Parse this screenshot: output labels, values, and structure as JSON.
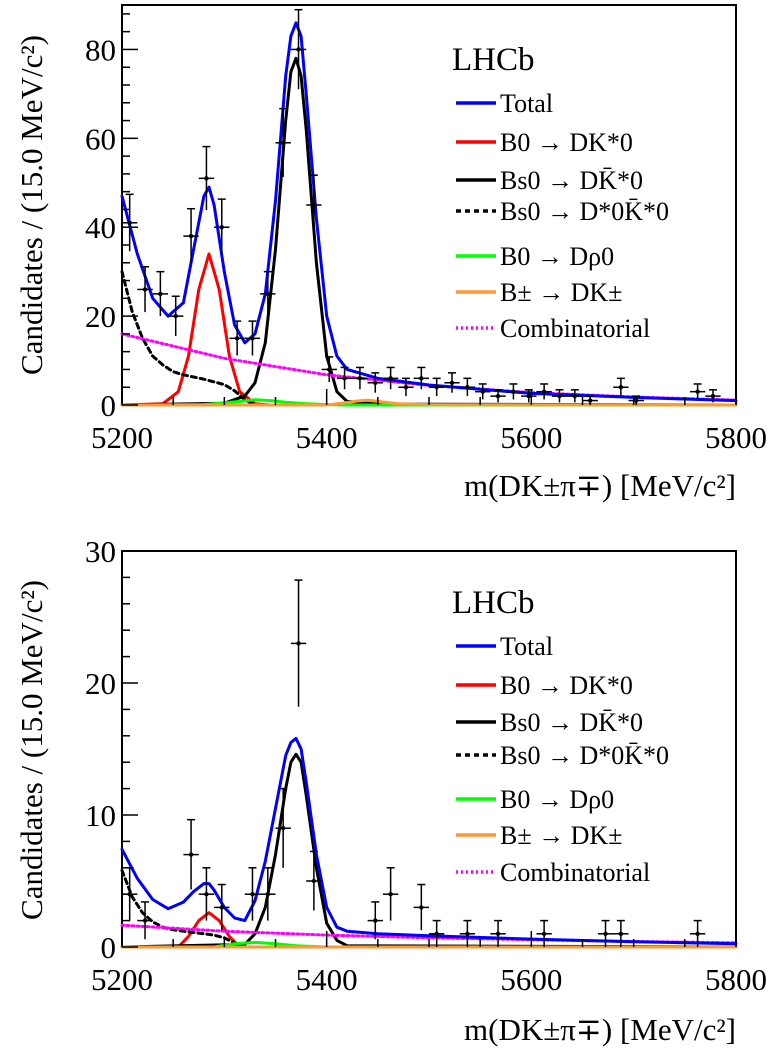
{
  "chart_data": [
    {
      "type": "line",
      "brand": "LHCb",
      "xlabel": "m(DK±π∓) [MeV/c²]",
      "ylabel": "Candidates / (15.0 MeV/c²)",
      "xlim": [
        5200,
        5800
      ],
      "ylim": [
        0,
        90
      ],
      "xticks": [
        5200,
        5400,
        5600,
        5800
      ],
      "yticks": [
        0,
        20,
        40,
        60,
        80
      ],
      "legend_position": "top-right",
      "series": [
        {
          "name": "Total",
          "color": "#0000ff",
          "style": "solid",
          "x": [
            5200,
            5215,
            5230,
            5245,
            5260,
            5270,
            5280,
            5285,
            5290,
            5300,
            5310,
            5320,
            5330,
            5340,
            5350,
            5360,
            5365,
            5370,
            5375,
            5380,
            5390,
            5400,
            5410,
            5420,
            5450,
            5500,
            5600,
            5700,
            5800
          ],
          "y": [
            47,
            34,
            24,
            20,
            23,
            35,
            47,
            49,
            45,
            30,
            18,
            14,
            16,
            25,
            46,
            74,
            83,
            86,
            83,
            70,
            42,
            20,
            11,
            8,
            6,
            4.5,
            2.6,
            1.7,
            1
          ]
        },
        {
          "name": "B0 → DK*0",
          "color": "#ff0000",
          "style": "solid",
          "x": [
            5200,
            5240,
            5255,
            5265,
            5275,
            5285,
            5295,
            5305,
            5315,
            5330,
            5345
          ],
          "y": [
            0,
            0.3,
            3,
            11,
            26,
            34,
            26,
            11,
            3,
            0.3,
            0
          ]
        },
        {
          "name": "Bs0 → DK̄*0",
          "color": "#000000",
          "style": "solid",
          "x": [
            5200,
            5300,
            5320,
            5330,
            5340,
            5350,
            5360,
            5365,
            5370,
            5375,
            5380,
            5390,
            5400,
            5410,
            5420,
            5450,
            5800
          ],
          "y": [
            0,
            0.4,
            2,
            5,
            14,
            35,
            64,
            75,
            78,
            74,
            62,
            32,
            11,
            3,
            0.8,
            0.2,
            0
          ]
        },
        {
          "name": "Bs0 → D*0K̄*0",
          "color": "#000000",
          "style": "dashed",
          "x": [
            5200,
            5210,
            5220,
            5230,
            5240,
            5250,
            5260,
            5270,
            5280,
            5290,
            5300,
            5310,
            5320,
            5330
          ],
          "y": [
            30,
            21,
            15,
            11,
            9,
            7.5,
            6.8,
            6.3,
            5.8,
            5.2,
            4.6,
            3.2,
            1.2,
            0
          ]
        },
        {
          "name": "B0 → Dρ0",
          "color": "#00ff00",
          "style": "solid",
          "x": [
            5200,
            5280,
            5310,
            5330,
            5345,
            5360,
            5380,
            5400,
            5420,
            5800
          ],
          "y": [
            0,
            0.1,
            0.7,
            1.2,
            1.0,
            0.6,
            0.3,
            0.1,
            0,
            0
          ]
        },
        {
          "name": "B± → DK±",
          "color": "#ff9933",
          "style": "solid",
          "x": [
            5200,
            5400,
            5415,
            5430,
            5440,
            5450,
            5470,
            5500,
            5800
          ],
          "y": [
            0,
            0,
            0.4,
            0.9,
            1.1,
            0.8,
            0.3,
            0.1,
            0
          ]
        },
        {
          "name": "Combinatorial",
          "color": "#ff00ff",
          "style": "dotted",
          "x": [
            5200,
            5300,
            5400,
            5500,
            5600,
            5700,
            5800
          ],
          "y": [
            16,
            10.5,
            6.8,
            4.4,
            2.8,
            1.8,
            1.1
          ]
        }
      ],
      "data_points": {
        "color": "#000000",
        "x": [
          5207.5,
          5222.5,
          5237.5,
          5252.5,
          5267.5,
          5282.5,
          5297.5,
          5312.5,
          5327.5,
          5342.5,
          5357.5,
          5372.5,
          5387.5,
          5402.5,
          5417.5,
          5432.5,
          5447.5,
          5462.5,
          5477.5,
          5492.5,
          5507.5,
          5522.5,
          5537.5,
          5552.5,
          5567.5,
          5582.5,
          5597.5,
          5612.5,
          5627.5,
          5642.5,
          5657.5,
          5687.5,
          5702.5,
          5762.5,
          5777.5
        ],
        "y": [
          41,
          26,
          25,
          20,
          38,
          51,
          40,
          15,
          15,
          25,
          59,
          80,
          45,
          8,
          6,
          6,
          5,
          6,
          4,
          6,
          4,
          5,
          4,
          3,
          2,
          3,
          2,
          3,
          2,
          2,
          1,
          4,
          1,
          3,
          2
        ]
      }
    },
    {
      "type": "line",
      "brand": "LHCb",
      "xlabel": "m(DK±π∓) [MeV/c²]",
      "ylabel": "Candidates / (15.0 MeV/c²)",
      "xlim": [
        5200,
        5800
      ],
      "ylim": [
        0,
        30
      ],
      "xticks": [
        5200,
        5400,
        5600,
        5800
      ],
      "yticks": [
        0,
        10,
        20,
        30
      ],
      "legend_position": "top-right",
      "series": [
        {
          "name": "Total",
          "color": "#0000ff",
          "style": "solid",
          "x": [
            5200,
            5215,
            5230,
            5245,
            5260,
            5270,
            5280,
            5285,
            5290,
            5300,
            5310,
            5320,
            5330,
            5340,
            5350,
            5360,
            5365,
            5370,
            5375,
            5380,
            5390,
            5400,
            5410,
            5420,
            5450,
            5500,
            5600,
            5700,
            5800
          ],
          "y": [
            7.4,
            5.2,
            3.6,
            2.9,
            3.4,
            4.2,
            4.8,
            4.8,
            4.3,
            3.0,
            2.2,
            2.0,
            3.5,
            6.5,
            10.5,
            14.5,
            15.5,
            15.8,
            15.0,
            12.5,
            7.0,
            3.0,
            1.5,
            1.2,
            1.0,
            0.85,
            0.6,
            0.4,
            0.25
          ]
        },
        {
          "name": "B0 → DK*0",
          "color": "#ff0000",
          "style": "solid",
          "x": [
            5200,
            5255,
            5265,
            5275,
            5285,
            5295,
            5305,
            5315
          ],
          "y": [
            0,
            0,
            0.8,
            2.0,
            2.6,
            2.0,
            0.8,
            0
          ]
        },
        {
          "name": "Bs0 → DK̄*0",
          "color": "#000000",
          "style": "solid",
          "x": [
            5200,
            5320,
            5330,
            5340,
            5350,
            5360,
            5365,
            5370,
            5375,
            5380,
            5390,
            5400,
            5410,
            5420,
            5800
          ],
          "y": [
            0,
            0.2,
            1.0,
            3.0,
            7.0,
            12.0,
            14.0,
            14.6,
            14.0,
            11.5,
            6.0,
            1.8,
            0.5,
            0.1,
            0
          ]
        },
        {
          "name": "Bs0 → D*0K̄*0",
          "color": "#000000",
          "style": "dashed",
          "x": [
            5200,
            5210,
            5220,
            5230,
            5240,
            5250,
            5260,
            5270,
            5280,
            5290,
            5300,
            5310,
            5320
          ],
          "y": [
            5.8,
            3.8,
            2.6,
            1.9,
            1.5,
            1.3,
            1.2,
            1.1,
            1.0,
            0.9,
            0.7,
            0.3,
            0
          ]
        },
        {
          "name": "B0 → Dρ0",
          "color": "#00ff00",
          "style": "solid",
          "x": [
            5200,
            5290,
            5310,
            5330,
            5350,
            5370,
            5400,
            5800
          ],
          "y": [
            0,
            0,
            0.25,
            0.35,
            0.25,
            0.1,
            0,
            0
          ]
        },
        {
          "name": "B± → DK±",
          "color": "#ff9933",
          "style": "solid",
          "x": [
            5200,
            5800
          ],
          "y": [
            0,
            0
          ]
        },
        {
          "name": "Combinatorial",
          "color": "#ff00ff",
          "style": "dotted",
          "x": [
            5200,
            5300,
            5400,
            5500,
            5600,
            5700,
            5800
          ],
          "y": [
            1.65,
            1.2,
            0.9,
            0.7,
            0.55,
            0.42,
            0.32
          ]
        }
      ],
      "data_points": {
        "color": "#000000",
        "x": [
          5207.5,
          5222.5,
          5267.5,
          5282.5,
          5297.5,
          5327.5,
          5342.5,
          5357.5,
          5372.5,
          5387.5,
          5447.5,
          5462.5,
          5492.5,
          5507.5,
          5537.5,
          5567.5,
          5612.5,
          5672.5,
          5687.5,
          5762.5
        ],
        "y": [
          4,
          2,
          7,
          4,
          3,
          4,
          4,
          9,
          23,
          5,
          2,
          4,
          3,
          1,
          1,
          1,
          1,
          1,
          1,
          1
        ]
      }
    }
  ]
}
